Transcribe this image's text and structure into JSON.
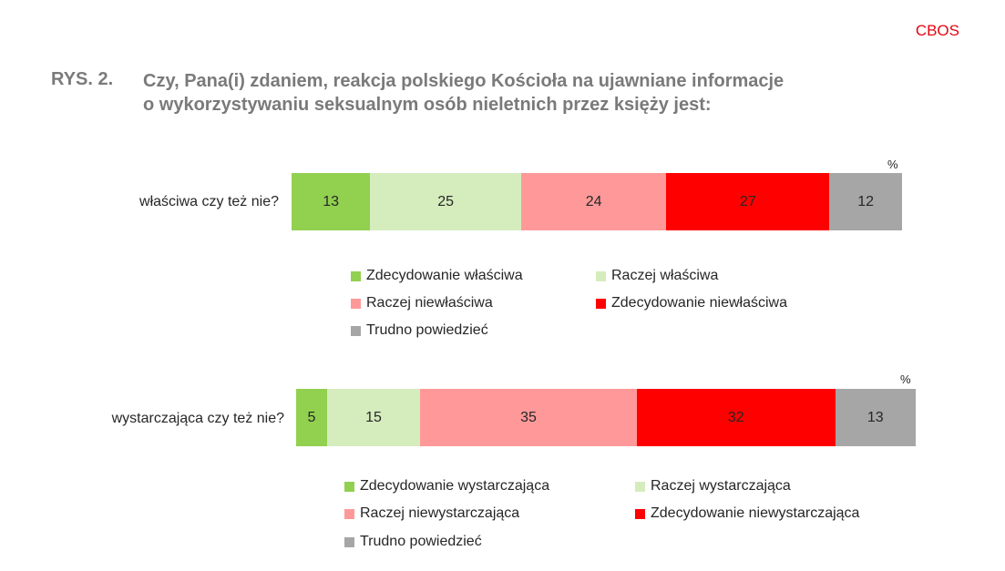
{
  "brand": "CBOS",
  "figure": {
    "label": "RYS. 2.",
    "title_line1": "Czy, Pana(i) zdaniem, reakcja polskiego Kościoła na ujawniane informacje",
    "title_line2": "o wykorzystywaniu seksualnym osób nieletnich przez księży jest:"
  },
  "colors": {
    "strong_positive": "#92d050",
    "positive": "#d5ecbd",
    "negative": "#ff9999",
    "strong_negative": "#ff0000",
    "unsure": "#a6a6a6"
  },
  "chart_data": [
    {
      "type": "bar",
      "orientation": "horizontal-stacked",
      "category": "właściwa czy też nie?",
      "unit": "%",
      "xlim": [
        0,
        101
      ],
      "series": [
        {
          "name": "Zdecydowanie właściwa",
          "value": 13,
          "color": "#92d050"
        },
        {
          "name": "Raczej właściwa",
          "value": 25,
          "color": "#d5ecbd"
        },
        {
          "name": "Raczej niewłaściwa",
          "value": 24,
          "color": "#ff9999"
        },
        {
          "name": "Zdecydowanie niewłaściwa",
          "value": 27,
          "color": "#ff0000"
        },
        {
          "name": "Trudno powiedzieć",
          "value": 12,
          "color": "#a6a6a6"
        }
      ],
      "legend_position": "bottom"
    },
    {
      "type": "bar",
      "orientation": "horizontal-stacked",
      "category": "wystarczająca czy też nie?",
      "unit": "%",
      "xlim": [
        0,
        100
      ],
      "series": [
        {
          "name": "Zdecydowanie wystarczająca",
          "value": 5,
          "color": "#92d050"
        },
        {
          "name": "Raczej wystarczająca",
          "value": 15,
          "color": "#d5ecbd"
        },
        {
          "name": "Raczej niewystarczająca",
          "value": 35,
          "color": "#ff9999"
        },
        {
          "name": "Zdecydowanie niewystarczająca",
          "value": 32,
          "color": "#ff0000"
        },
        {
          "name": "Trudno powiedzieć",
          "value": 13,
          "color": "#a6a6a6"
        }
      ],
      "legend_position": "bottom"
    }
  ]
}
